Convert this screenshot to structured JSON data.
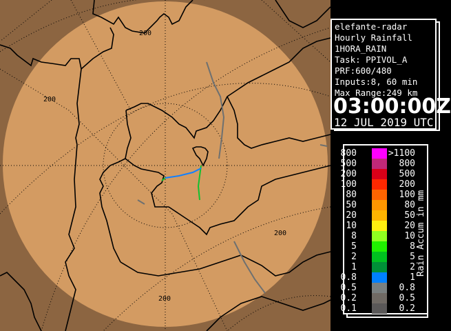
{
  "map": {
    "colors": {
      "outside_range": "#8c6541",
      "inside_range": "#d39b62",
      "border": "#000000",
      "echo_gray": "#6e7070",
      "echo_green": "#10c030",
      "echo_blue": "#1080ff"
    },
    "range_labels": [
      "200",
      "200",
      "200",
      "200"
    ]
  },
  "info": {
    "lines": [
      "elefante-radar",
      "Hourly Rainfall",
      "1HORA_RAIN",
      "Task: PPIVOL_A",
      "PRF:600/480",
      "Inputs:8, 60 min",
      "Max Range:249 km"
    ],
    "time": "03:00:00Z",
    "date": "12 JUL 2019 UTC"
  },
  "legend": {
    "unit_label": "Rain Accum in mm",
    "rows": [
      {
        "low": "800",
        "high": ">1100",
        "color": "#ff00ff"
      },
      {
        "low": "500",
        "high": "800",
        "color": "#c02878"
      },
      {
        "low": "200",
        "high": "500",
        "color": "#d80018"
      },
      {
        "low": "100",
        "high": "200",
        "color": "#ff2800"
      },
      {
        "low": "80",
        "high": "100",
        "color": "#ff6400"
      },
      {
        "low": "50",
        "high": "80",
        "color": "#ff9600"
      },
      {
        "low": "20",
        "high": "50",
        "color": "#ffb400"
      },
      {
        "low": "10",
        "high": "20",
        "color": "#ffee10"
      },
      {
        "low": "8",
        "high": "10",
        "color": "#90ff20"
      },
      {
        "low": "5",
        "high": "8",
        "color": "#20f000"
      },
      {
        "low": "2",
        "high": "5",
        "color": "#00c020"
      },
      {
        "low": "1",
        "high": "2",
        "color": "#009038"
      },
      {
        "low": "0.8",
        "high": "1",
        "color": "#0080ff"
      },
      {
        "low": "0.5",
        "high": "0.8",
        "color": "#7a8080"
      },
      {
        "low": "0.2",
        "high": "0.5",
        "color": "#706a64"
      },
      {
        "low": "0.1",
        "high": "0.2",
        "color": "#5a5858"
      }
    ]
  }
}
